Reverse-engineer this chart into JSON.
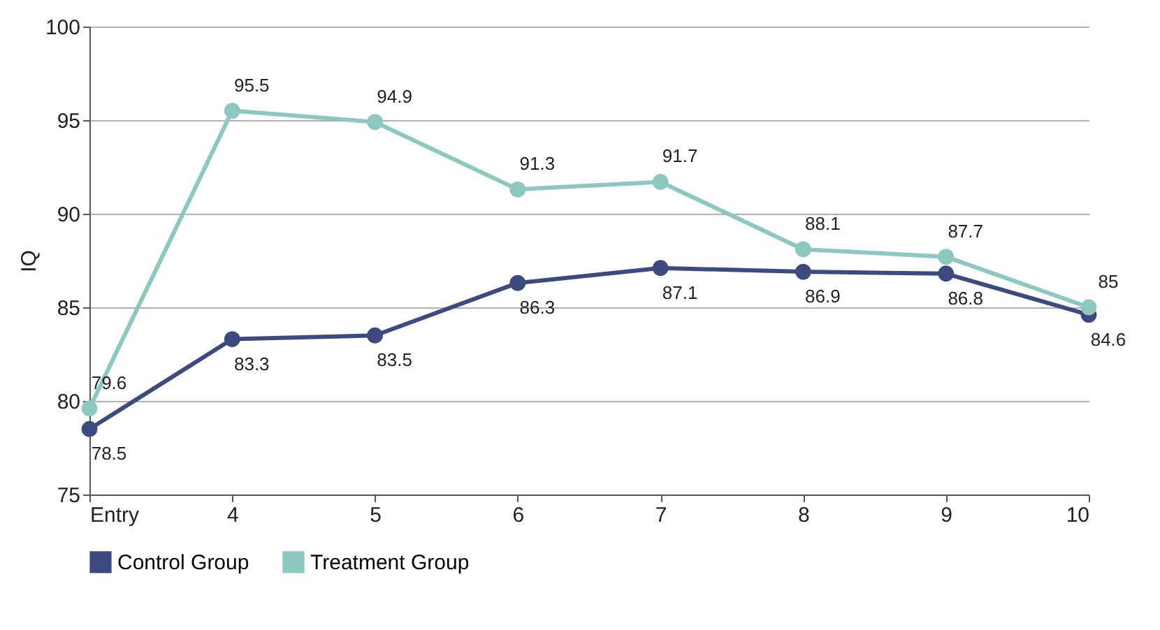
{
  "chart_data": {
    "type": "line",
    "ylabel": "IQ",
    "categories": [
      "Entry",
      "4",
      "5",
      "6",
      "7",
      "8",
      "9",
      "10"
    ],
    "series": [
      {
        "name": "Control Group",
        "color": "#3d4a7f",
        "values": [
          78.5,
          83.3,
          83.5,
          86.3,
          87.1,
          86.9,
          86.8,
          84.6
        ]
      },
      {
        "name": "Treatment Group",
        "color": "#8dc8c0",
        "values": [
          79.6,
          95.5,
          94.9,
          91.3,
          91.7,
          88.1,
          87.7,
          85
        ]
      }
    ],
    "ylim": [
      75,
      100
    ],
    "yticks": [
      75,
      80,
      85,
      90,
      95,
      100
    ],
    "grid": "y",
    "legend": "bottom",
    "marker": "circle",
    "line_style": "solid",
    "data_labels": true
  }
}
